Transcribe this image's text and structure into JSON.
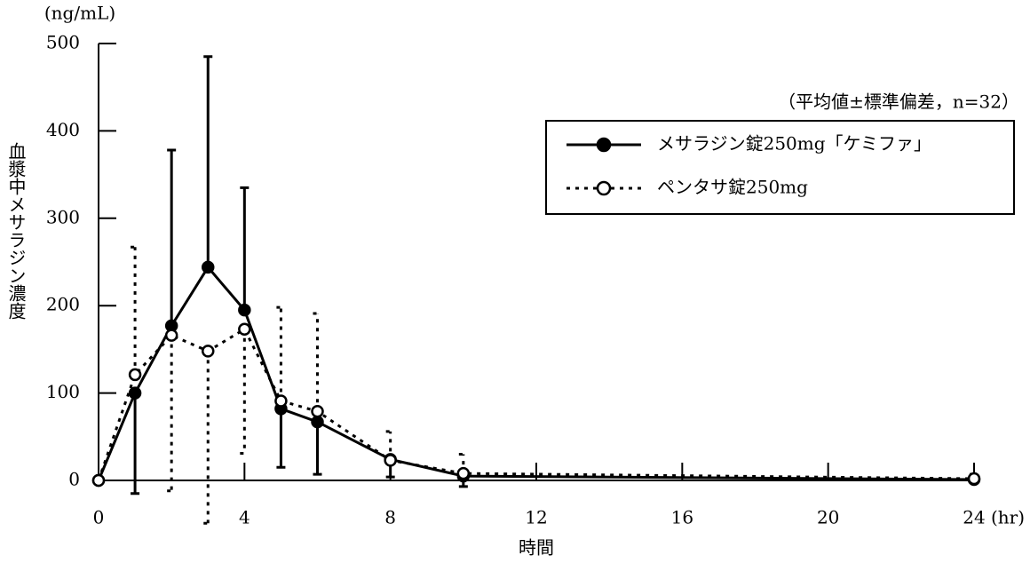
{
  "chart_data": {
    "type": "line",
    "y_unit": "(ng/mL)",
    "ylabel": "血漿中メサラジン濃度",
    "xlabel": "時間",
    "x_unit": "(hr)",
    "legend_title": "（平均値±標準偏差，n=32）",
    "x": [
      0,
      1,
      2,
      3,
      4,
      5,
      6,
      8,
      10,
      24
    ],
    "xlim": [
      0,
      24
    ],
    "xticks": [
      0,
      4,
      8,
      12,
      16,
      20,
      24
    ],
    "ylim": [
      0,
      500
    ],
    "yticks": [
      0,
      100,
      200,
      300,
      400,
      500
    ],
    "legend": "upper right",
    "series": [
      {
        "name": "メサラジン錠250mg「ケミファ」",
        "color": "#000000",
        "marker_face": "#000000",
        "line_style": "solid",
        "values": [
          0,
          100,
          177,
          244,
          195,
          82,
          67,
          24,
          5,
          1
        ],
        "errors": [
          null,
          115,
          201,
          241,
          140,
          67,
          60,
          20,
          12,
          3
        ],
        "error_side": [
          null,
          "down",
          "up",
          "up",
          "up",
          "down",
          "down",
          "down",
          "down",
          "up"
        ]
      },
      {
        "name": "ペンタサ錠250mg",
        "color": "#000000",
        "marker_face": "#ffffff",
        "line_style": "dotted",
        "values": [
          0,
          121,
          166,
          148,
          173,
          91,
          79,
          23,
          8,
          2
        ],
        "errors": [
          null,
          146,
          178,
          197,
          142,
          107,
          112,
          33,
          22,
          5
        ],
        "error_side": [
          null,
          "up",
          "down",
          "down",
          "down",
          "up",
          "up",
          "up",
          "up",
          "up"
        ]
      }
    ]
  }
}
